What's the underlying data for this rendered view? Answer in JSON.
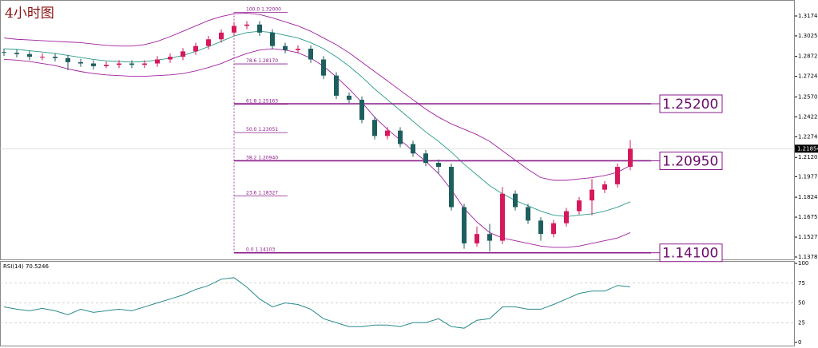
{
  "chart_data": [
    {
      "type": "candlestick",
      "title": "4小时图",
      "ylim": [
        1.13607,
        1.32631
      ],
      "yticks": [
        {
          "value": 1.3174,
          "label": "1.31740"
        },
        {
          "value": 1.30255,
          "label": "1.30255"
        },
        {
          "value": 1.28725,
          "label": "1.28725"
        },
        {
          "value": 1.2724,
          "label": "1.27240"
        },
        {
          "value": 1.25705,
          "label": "1.25705"
        },
        {
          "value": 1.2422,
          "label": "1.24220"
        },
        {
          "value": 1.2274,
          "label": "1.22740"
        },
        {
          "value": 1.21205,
          "label": "1.21205"
        },
        {
          "value": 1.1977,
          "label": "1.19770"
        },
        {
          "value": 1.1824,
          "label": "1.18240"
        },
        {
          "value": 1.16755,
          "label": "1.16755"
        },
        {
          "value": 1.1527,
          "label": "1.15270"
        },
        {
          "value": 1.13785,
          "label": "1.13785"
        }
      ],
      "current_price": {
        "value": 1.21854,
        "label": "1.21854"
      },
      "up_color": "#d6185c",
      "down_color": "#1e5e5e",
      "open": [
        1.2905,
        1.29,
        1.289,
        1.287,
        1.287,
        1.286,
        1.283,
        1.282,
        1.28,
        1.281,
        1.282,
        1.281,
        1.282,
        1.285,
        1.287,
        1.291,
        1.295,
        1.3,
        1.305,
        1.31,
        1.311,
        1.305,
        1.295,
        1.292,
        1.293,
        1.285,
        1.273,
        1.258,
        1.255,
        1.24,
        1.228,
        1.232,
        1.222,
        1.215,
        1.208,
        1.205,
        1.175,
        1.148,
        1.155,
        1.15,
        1.185,
        1.175,
        1.165,
        1.155,
        1.163,
        1.172,
        1.18,
        1.188,
        1.192,
        1.205
      ],
      "high": [
        1.293,
        1.2925,
        1.2915,
        1.2895,
        1.2895,
        1.2885,
        1.2855,
        1.2845,
        1.2835,
        1.2845,
        1.2845,
        1.2845,
        1.2875,
        1.2895,
        1.2935,
        1.2975,
        1.3025,
        1.3075,
        1.313,
        1.3135,
        1.3135,
        1.3075,
        1.2975,
        1.2955,
        1.2955,
        1.2875,
        1.2755,
        1.2605,
        1.2575,
        1.2425,
        1.2345,
        1.2345,
        1.2245,
        1.2175,
        1.2105,
        1.2075,
        1.1775,
        1.1605,
        1.1625,
        1.19,
        1.1875,
        1.1775,
        1.1675,
        1.1655,
        1.1745,
        1.1825,
        1.196,
        1.1945,
        1.2075,
        1.225
      ],
      "low": [
        1.2875,
        1.2865,
        1.2845,
        1.2845,
        1.2835,
        1.277,
        1.2795,
        1.2775,
        1.2785,
        1.2785,
        1.2785,
        1.2785,
        1.2795,
        1.2825,
        1.2845,
        1.2885,
        1.2925,
        1.2975,
        1.3025,
        1.3075,
        1.3025,
        1.2925,
        1.2895,
        1.2895,
        1.2825,
        1.2705,
        1.2555,
        1.2525,
        1.2375,
        1.2255,
        1.2255,
        1.2195,
        1.2125,
        1.2055,
        1.1995,
        1.1725,
        1.144,
        1.1455,
        1.142,
        1.1475,
        1.1725,
        1.1625,
        1.15,
        1.1525,
        1.1605,
        1.1695,
        1.169,
        1.1855,
        1.1895,
        1.2025
      ],
      "close": [
        1.29,
        1.289,
        1.287,
        1.287,
        1.286,
        1.283,
        1.282,
        1.28,
        1.281,
        1.282,
        1.281,
        1.282,
        1.285,
        1.287,
        1.291,
        1.295,
        1.3,
        1.305,
        1.31,
        1.311,
        1.305,
        1.295,
        1.292,
        1.293,
        1.285,
        1.273,
        1.258,
        1.255,
        1.24,
        1.228,
        1.232,
        1.222,
        1.215,
        1.208,
        1.205,
        1.175,
        1.148,
        1.155,
        1.15,
        1.185,
        1.175,
        1.165,
        1.155,
        1.163,
        1.172,
        1.18,
        1.188,
        1.192,
        1.205,
        1.2185
      ],
      "bands": [
        {
          "color": "#a020a0",
          "values": [
            1.301,
            1.3,
            1.2995,
            1.299,
            1.2985,
            1.298,
            1.2975,
            1.2965,
            1.2955,
            1.295,
            1.295,
            1.296,
            1.2985,
            1.302,
            1.306,
            1.31,
            1.314,
            1.317,
            1.319,
            1.3195,
            1.3185,
            1.316,
            1.313,
            1.31,
            1.306,
            1.301,
            1.296,
            1.29,
            1.283,
            1.276,
            1.269,
            1.262,
            1.255,
            1.248,
            1.242,
            1.237,
            1.233,
            1.229,
            1.224,
            1.217,
            1.21,
            1.203,
            1.197,
            1.195,
            1.195,
            1.196,
            1.197,
            1.1985,
            1.201,
            1.206
          ]
        },
        {
          "color": "#2a9a8a",
          "values": [
            1.293,
            1.2925,
            1.2915,
            1.2905,
            1.2895,
            1.288,
            1.2865,
            1.285,
            1.284,
            1.2835,
            1.283,
            1.2835,
            1.2845,
            1.286,
            1.288,
            1.291,
            1.2945,
            1.2985,
            1.3025,
            1.305,
            1.306,
            1.305,
            1.303,
            1.301,
            1.2975,
            1.293,
            1.287,
            1.28,
            1.272,
            1.263,
            1.255,
            1.247,
            1.239,
            1.231,
            1.224,
            1.216,
            1.207,
            1.199,
            1.191,
            1.185,
            1.18,
            1.176,
            1.172,
            1.169,
            1.168,
            1.169,
            1.17,
            1.172,
            1.175,
            1.179
          ]
        },
        {
          "color": "#a020a0",
          "values": [
            1.285,
            1.2845,
            1.2835,
            1.282,
            1.2805,
            1.278,
            1.276,
            1.2745,
            1.2735,
            1.273,
            1.2725,
            1.2725,
            1.273,
            1.2735,
            1.2745,
            1.2765,
            1.279,
            1.282,
            1.286,
            1.2895,
            1.292,
            1.293,
            1.292,
            1.29,
            1.286,
            1.28,
            1.272,
            1.263,
            1.253,
            1.242,
            1.233,
            1.225,
            1.217,
            1.209,
            1.2,
            1.188,
            1.174,
            1.164,
            1.156,
            1.152,
            1.15,
            1.148,
            1.146,
            1.145,
            1.145,
            1.146,
            1.148,
            1.15,
            1.152,
            1.156
          ]
        }
      ],
      "fib": [
        {
          "value": 1.32,
          "label": "100.0  1.32000"
        },
        {
          "value": 1.2817,
          "label": "78.6  1.28170"
        },
        {
          "value": 1.25163,
          "label": "61.8  1.25163"
        },
        {
          "value": 1.23051,
          "label": "50.0  1.23051"
        },
        {
          "value": 1.2094,
          "label": "38.2  1.20940"
        },
        {
          "value": 1.18327,
          "label": "23.6  1.18327"
        },
        {
          "value": 1.14103,
          "label": "0.0  1.14103"
        }
      ],
      "levels": [
        {
          "value": 1.252,
          "label": "1.25200"
        },
        {
          "value": 1.2095,
          "label": "1.20950"
        },
        {
          "value": 1.141,
          "label": "1.14100"
        }
      ]
    },
    {
      "type": "line",
      "title": "RSI(14) 70.5246",
      "color": "#2a8a8a",
      "ylim": [
        0,
        100
      ],
      "yticks": [
        100,
        75,
        50,
        25,
        0
      ],
      "values": [
        45,
        42,
        40,
        43,
        40,
        35,
        42,
        38,
        40,
        42,
        40,
        45,
        50,
        55,
        60,
        67,
        72,
        80,
        82,
        70,
        55,
        45,
        50,
        48,
        42,
        30,
        25,
        20,
        20,
        22,
        22,
        20,
        25,
        25,
        30,
        20,
        18,
        28,
        30,
        45,
        45,
        42,
        42,
        48,
        55,
        62,
        65,
        65,
        72,
        70.5
      ]
    }
  ]
}
